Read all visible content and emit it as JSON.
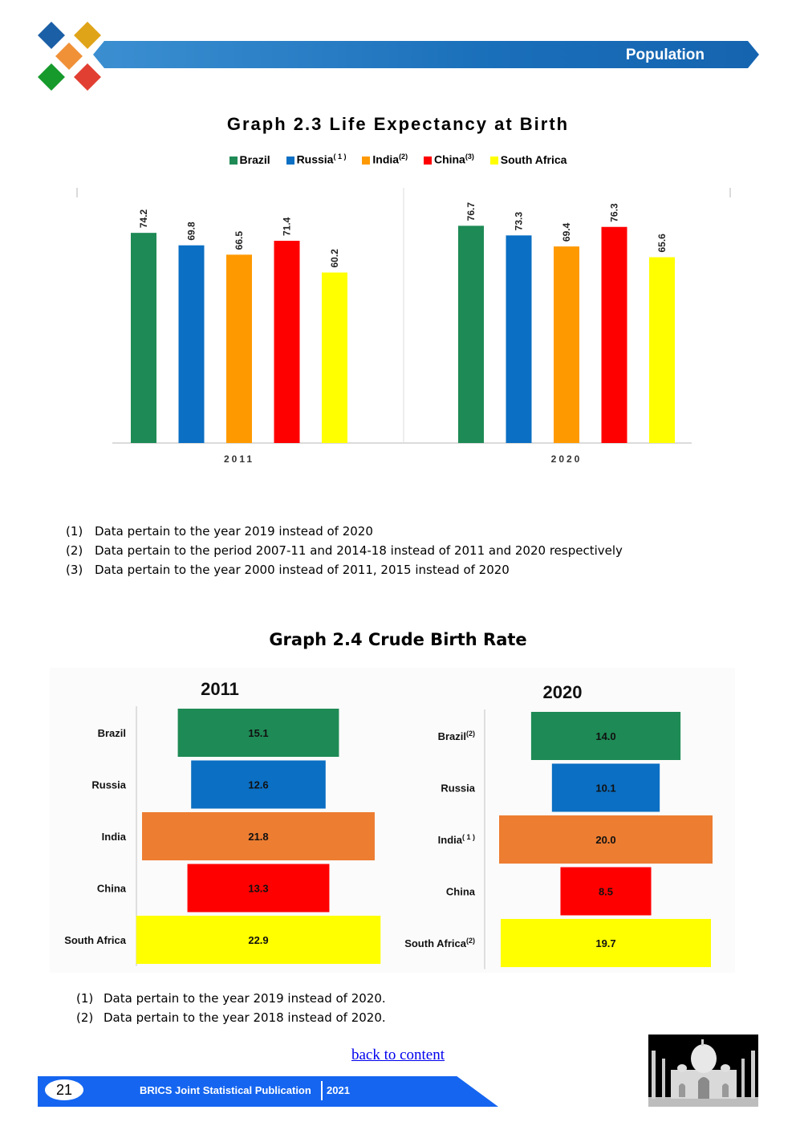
{
  "header": {
    "title": "Population"
  },
  "graph23": {
    "title": "Graph 2.3 Life Expectancy at Birth",
    "legend": [
      {
        "name": "Brazil",
        "sup": "",
        "color": "#1e8a55"
      },
      {
        "name": "Russia",
        "sup": "( 1 )",
        "color": "#0b6fc3"
      },
      {
        "name": "India",
        "sup": "(2)",
        "color": "#ff9900"
      },
      {
        "name": "China",
        "sup": "(3)",
        "color": "#ff0000"
      },
      {
        "name": "South Africa",
        "sup": "",
        "color": "#ffff00"
      }
    ],
    "notes": [
      {
        "num": "(1)",
        "text": "Data pertain to the year 2019 instead of 2020"
      },
      {
        "num": "(2)",
        "text": "Data pertain to the period 2007-11 and 2014-18 instead of 2011 and 2020 respectively"
      },
      {
        "num": "(3)",
        "text": "Data pertain to the year 2000 instead of 2011, 2015 instead of 2020"
      }
    ]
  },
  "graph24": {
    "title": "Graph 2.4 Crude Birth Rate",
    "notes": [
      {
        "num": "(1)",
        "text": "Data pertain to the year 2019 instead of 2020."
      },
      {
        "num": "(2)",
        "text": "Data pertain to the year 2018 instead of 2020."
      }
    ]
  },
  "chart_data": [
    {
      "type": "bar",
      "title": "Graph 2.3 Life Expectancy at Birth",
      "categories": [
        "2011",
        "2020"
      ],
      "series": [
        {
          "name": "Brazil",
          "values": [
            74.2,
            76.7
          ],
          "color": "#1e8a55"
        },
        {
          "name": "Russia",
          "values": [
            69.8,
            73.3
          ],
          "color": "#0b6fc3"
        },
        {
          "name": "India",
          "values": [
            66.5,
            69.4
          ],
          "color": "#ff9900"
        },
        {
          "name": "China",
          "values": [
            71.4,
            76.3
          ],
          "color": "#ff0000"
        },
        {
          "name": "South Africa",
          "values": [
            60.2,
            65.6
          ],
          "color": "#ffff00"
        }
      ],
      "ylim": [
        0,
        80
      ],
      "grid": false,
      "legend": "top"
    },
    {
      "type": "bar",
      "title": "Graph 2.4 Crude Birth Rate",
      "orientation": "horizontal-centered",
      "panels": [
        {
          "title": "2011",
          "categories": [
            "Brazil",
            "Russia",
            "India",
            "China",
            "South Africa"
          ],
          "category_sups": [
            "",
            "",
            "",
            "",
            ""
          ],
          "values": [
            15.1,
            12.6,
            21.8,
            13.3,
            22.9
          ],
          "colors": [
            "#1e8a55",
            "#0b6fc3",
            "#ed7d31",
            "#ff0000",
            "#ffff00"
          ]
        },
        {
          "title": "2020",
          "categories": [
            "Brazil",
            "Russia",
            "India",
            "China",
            "South Africa"
          ],
          "category_sups": [
            "(2)",
            "",
            "( 1 )",
            "",
            "(2)"
          ],
          "values": [
            14.0,
            10.1,
            20.0,
            8.5,
            19.7
          ],
          "colors": [
            "#1e8a55",
            "#0b6fc3",
            "#ed7d31",
            "#ff0000",
            "#ffff00"
          ]
        }
      ]
    }
  ],
  "footer": {
    "page_number": "21",
    "publication": "BRICS Joint Statistical Publication",
    "year": "2021",
    "back_link": "back to content"
  }
}
